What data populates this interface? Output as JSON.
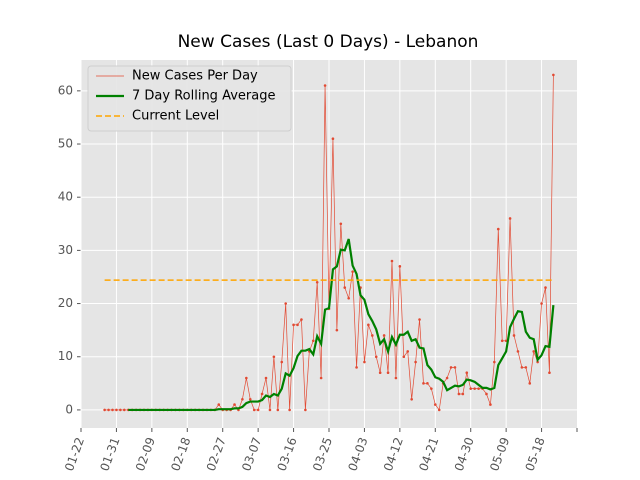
{
  "chart_data": {
    "type": "line",
    "title": "New Cases (Last 0 Days) - Lebanon",
    "categories": [
      "01-22",
      null,
      null,
      null,
      null,
      null,
      null,
      null,
      null,
      "01-31",
      null,
      null,
      null,
      null,
      null,
      null,
      null,
      null,
      "02-09",
      null,
      null,
      null,
      null,
      null,
      null,
      null,
      null,
      "02-18",
      null,
      null,
      null,
      null,
      null,
      null,
      null,
      null,
      "02-27",
      null,
      null,
      null,
      null,
      null,
      null,
      null,
      null,
      "03-07",
      null,
      null,
      null,
      null,
      null,
      null,
      null,
      null,
      "03-16",
      null,
      null,
      null,
      null,
      null,
      null,
      null,
      null,
      "03-25",
      null,
      null,
      null,
      null,
      null,
      null,
      null,
      null,
      "04-03",
      null,
      null,
      null,
      null,
      null,
      null,
      null,
      null,
      "04-12",
      null,
      null,
      null,
      null,
      null,
      null,
      null,
      null,
      "04-21",
      null,
      null,
      null,
      null,
      null,
      null,
      null,
      null,
      "04-30",
      null,
      null,
      null,
      null,
      null,
      null,
      null,
      null,
      "05-09",
      null,
      null,
      null,
      null,
      null,
      null,
      null,
      null,
      "05-18",
      null,
      null,
      null,
      null,
      null,
      null,
      null,
      null,
      null
    ],
    "series": [
      {
        "name": "New Cases Per Day",
        "color": "#e24a33",
        "style": "thin-dots",
        "values": [
          null,
          null,
          null,
          null,
          null,
          null,
          0,
          0,
          0,
          0,
          0,
          0,
          0,
          0,
          0,
          0,
          0,
          0,
          0,
          0,
          0,
          0,
          0,
          0,
          0,
          0,
          0,
          0,
          0,
          0,
          0,
          0,
          0,
          0,
          0,
          1,
          0,
          0,
          0,
          1,
          0,
          2,
          6,
          2,
          0,
          0,
          3,
          6,
          0,
          10,
          0,
          9,
          20,
          0,
          16,
          16,
          17,
          0,
          11,
          13,
          24,
          6,
          61,
          19,
          51,
          15,
          35,
          23,
          21,
          26,
          8,
          23,
          9,
          16,
          14,
          10,
          7,
          14,
          7,
          28,
          6,
          27,
          10,
          11,
          2,
          9,
          17,
          5,
          5,
          4,
          1,
          0,
          5,
          6,
          8,
          8,
          3,
          3,
          7,
          4,
          4,
          4,
          4,
          3,
          1,
          9,
          34,
          13,
          13,
          36,
          14,
          11,
          8,
          8,
          5,
          11,
          9,
          20,
          23,
          7,
          63,
          null,
          null,
          null,
          null,
          null,
          null
        ]
      },
      {
        "name": "7 Day Rolling Average",
        "color": "#008000",
        "style": "thick",
        "values": [
          null,
          null,
          null,
          null,
          null,
          null,
          null,
          null,
          null,
          null,
          null,
          null,
          0,
          0,
          0,
          0,
          0,
          0,
          0,
          0,
          0,
          0,
          0,
          0,
          0,
          0,
          0,
          0,
          0,
          0,
          0,
          0,
          0,
          0,
          0,
          0.14,
          0.14,
          0.14,
          0.14,
          0.29,
          0.29,
          0.57,
          1.29,
          1.57,
          1.57,
          1.57,
          1.86,
          2.71,
          2.43,
          3.0,
          2.71,
          4.0,
          6.86,
          6.43,
          7.86,
          10.14,
          11.14,
          11.14,
          11.43,
          10.43,
          13.86,
          12.43,
          18.86,
          19.14,
          26.43,
          27.0,
          30.14,
          30.0,
          32.14,
          27.14,
          25.57,
          21.57,
          20.71,
          18.0,
          16.71,
          15.14,
          12.43,
          13.29,
          11.0,
          13.71,
          12.29,
          14.14,
          14.14,
          14.71,
          13.0,
          13.29,
          11.71,
          11.57,
          8.43,
          7.57,
          6.14,
          5.86,
          5.29,
          3.71,
          4.14,
          4.57,
          4.43,
          4.71,
          5.71,
          5.57,
          5.29,
          4.71,
          4.14,
          4.14,
          3.86,
          4.14,
          8.43,
          9.71,
          11.0,
          15.57,
          17.14,
          18.57,
          18.43,
          14.71,
          13.57,
          13.29,
          9.43,
          10.29,
          12.0,
          11.86,
          19.71,
          null,
          null,
          null,
          null,
          null,
          null
        ]
      },
      {
        "name": "Current Level",
        "color": "#ffa500",
        "style": "dashed",
        "value": 24.4
      }
    ],
    "ylim": [
      -3.4,
      65.8
    ],
    "yticks": [
      0,
      10,
      20,
      30,
      40,
      50,
      60
    ],
    "grid": true,
    "legend": "upper left"
  }
}
